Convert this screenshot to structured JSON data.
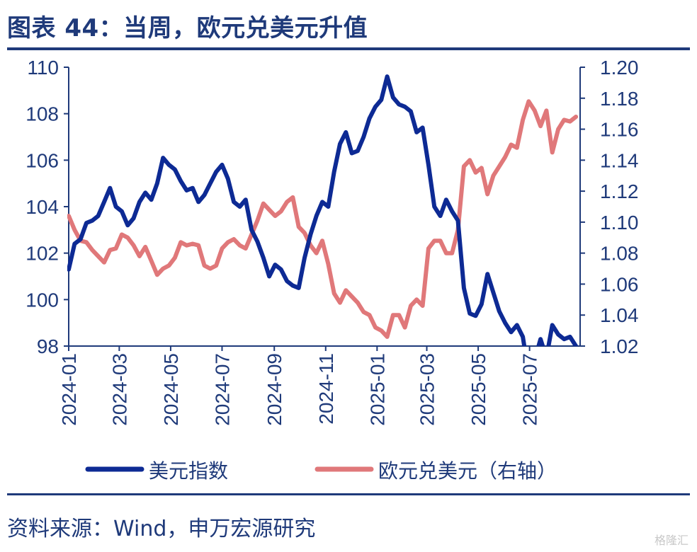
{
  "title": "图表 44：当周，欧元兑美元升值",
  "source": "资料来源：Wind，申万宏源研究",
  "watermark": "格隆汇",
  "colors": {
    "dxy": "#0d2a94",
    "eurusd": "#e0787a",
    "axis": "#1f3a7a"
  },
  "chart_data": {
    "type": "line",
    "x_ticks": [
      "2024-01",
      "2024-03",
      "2024-05",
      "2024-07",
      "2024-09",
      "2024-11",
      "2025-01",
      "2025-03",
      "2025-05",
      "2025-07"
    ],
    "x_range": [
      "2024-01",
      "2025-08"
    ],
    "y_left": {
      "label": "美元指数",
      "ylim": [
        98,
        110
      ],
      "ticks": [
        98,
        100,
        102,
        104,
        106,
        108,
        110
      ]
    },
    "y_right": {
      "label": "欧元兑美元（右轴）",
      "ylim": [
        1.02,
        1.2
      ],
      "ticks": [
        "1.02",
        "1.04",
        "1.06",
        "1.08",
        "1.10",
        "1.12",
        "1.14",
        "1.16",
        "1.18",
        "1.20"
      ]
    },
    "series": [
      {
        "name": "美元指数",
        "axis": "left",
        "points": [
          [
            "2024-01-01",
            101.3
          ],
          [
            "2024-01-08",
            102.4
          ],
          [
            "2024-01-15",
            102.6
          ],
          [
            "2024-01-22",
            103.3
          ],
          [
            "2024-01-29",
            103.4
          ],
          [
            "2024-02-05",
            103.6
          ],
          [
            "2024-02-12",
            104.2
          ],
          [
            "2024-02-19",
            104.8
          ],
          [
            "2024-02-26",
            104.0
          ],
          [
            "2024-03-04",
            103.8
          ],
          [
            "2024-03-11",
            103.2
          ],
          [
            "2024-03-18",
            103.5
          ],
          [
            "2024-03-25",
            104.2
          ],
          [
            "2024-04-01",
            104.6
          ],
          [
            "2024-04-08",
            104.3
          ],
          [
            "2024-04-15",
            105.0
          ],
          [
            "2024-04-22",
            106.1
          ],
          [
            "2024-04-29",
            105.8
          ],
          [
            "2024-05-06",
            105.6
          ],
          [
            "2024-05-13",
            105.1
          ],
          [
            "2024-05-20",
            104.7
          ],
          [
            "2024-05-27",
            104.8
          ],
          [
            "2024-06-03",
            104.2
          ],
          [
            "2024-06-10",
            104.5
          ],
          [
            "2024-06-17",
            105.0
          ],
          [
            "2024-06-24",
            105.5
          ],
          [
            "2024-07-01",
            105.8
          ],
          [
            "2024-07-08",
            105.2
          ],
          [
            "2024-07-15",
            104.2
          ],
          [
            "2024-07-22",
            104.0
          ],
          [
            "2024-07-29",
            104.3
          ],
          [
            "2024-08-05",
            103.0
          ],
          [
            "2024-08-12",
            102.5
          ],
          [
            "2024-08-19",
            101.8
          ],
          [
            "2024-08-26",
            101.0
          ],
          [
            "2024-09-02",
            101.5
          ],
          [
            "2024-09-09",
            101.3
          ],
          [
            "2024-09-16",
            100.8
          ],
          [
            "2024-09-23",
            100.6
          ],
          [
            "2024-09-30",
            100.5
          ],
          [
            "2024-10-07",
            101.8
          ],
          [
            "2024-10-14",
            102.8
          ],
          [
            "2024-10-21",
            103.6
          ],
          [
            "2024-10-28",
            104.2
          ],
          [
            "2024-11-04",
            104.0
          ],
          [
            "2024-11-11",
            105.5
          ],
          [
            "2024-11-18",
            106.7
          ],
          [
            "2024-11-25",
            107.2
          ],
          [
            "2024-12-02",
            106.3
          ],
          [
            "2024-12-09",
            106.4
          ],
          [
            "2024-12-16",
            107.0
          ],
          [
            "2024-12-23",
            107.8
          ],
          [
            "2024-12-30",
            108.3
          ],
          [
            "2025-01-06",
            108.6
          ],
          [
            "2025-01-13",
            109.6
          ],
          [
            "2025-01-20",
            108.7
          ],
          [
            "2025-01-27",
            108.4
          ],
          [
            "2025-02-03",
            108.3
          ],
          [
            "2025-02-10",
            108.1
          ],
          [
            "2025-02-17",
            107.2
          ],
          [
            "2025-02-24",
            107.4
          ],
          [
            "2025-03-03",
            105.8
          ],
          [
            "2025-03-10",
            104.0
          ],
          [
            "2025-03-17",
            103.6
          ],
          [
            "2025-03-24",
            104.3
          ],
          [
            "2025-03-31",
            103.8
          ],
          [
            "2025-04-07",
            103.4
          ],
          [
            "2025-04-14",
            100.5
          ],
          [
            "2025-04-21",
            99.4
          ],
          [
            "2025-04-28",
            99.3
          ],
          [
            "2025-05-05",
            99.8
          ],
          [
            "2025-05-12",
            101.1
          ],
          [
            "2025-05-19",
            100.3
          ],
          [
            "2025-05-26",
            99.5
          ],
          [
            "2025-06-02",
            99.0
          ],
          [
            "2025-06-09",
            98.6
          ],
          [
            "2025-06-16",
            98.9
          ],
          [
            "2025-06-23",
            98.4
          ],
          [
            "2025-06-30",
            96.8
          ],
          [
            "2025-07-07",
            97.4
          ],
          [
            "2025-07-14",
            98.3
          ],
          [
            "2025-07-21",
            97.5
          ],
          [
            "2025-07-28",
            98.9
          ],
          [
            "2025-08-04",
            98.5
          ],
          [
            "2025-08-11",
            98.3
          ],
          [
            "2025-08-18",
            98.4
          ],
          [
            "2025-08-25",
            98.0
          ]
        ]
      },
      {
        "name": "欧元兑美元（右轴）",
        "axis": "right",
        "points": [
          [
            "2024-01-01",
            1.104
          ],
          [
            "2024-01-08",
            1.095
          ],
          [
            "2024-01-15",
            1.088
          ],
          [
            "2024-01-22",
            1.087
          ],
          [
            "2024-01-29",
            1.082
          ],
          [
            "2024-02-05",
            1.078
          ],
          [
            "2024-02-12",
            1.074
          ],
          [
            "2024-02-19",
            1.082
          ],
          [
            "2024-02-26",
            1.083
          ],
          [
            "2024-03-04",
            1.092
          ],
          [
            "2024-03-11",
            1.09
          ],
          [
            "2024-03-18",
            1.085
          ],
          [
            "2024-03-25",
            1.078
          ],
          [
            "2024-04-01",
            1.084
          ],
          [
            "2024-04-08",
            1.075
          ],
          [
            "2024-04-15",
            1.066
          ],
          [
            "2024-04-22",
            1.07
          ],
          [
            "2024-04-29",
            1.072
          ],
          [
            "2024-05-06",
            1.077
          ],
          [
            "2024-05-13",
            1.087
          ],
          [
            "2024-05-20",
            1.085
          ],
          [
            "2024-05-27",
            1.086
          ],
          [
            "2024-06-03",
            1.085
          ],
          [
            "2024-06-10",
            1.072
          ],
          [
            "2024-06-17",
            1.07
          ],
          [
            "2024-06-24",
            1.072
          ],
          [
            "2024-07-01",
            1.083
          ],
          [
            "2024-07-08",
            1.087
          ],
          [
            "2024-07-15",
            1.089
          ],
          [
            "2024-07-22",
            1.085
          ],
          [
            "2024-07-29",
            1.083
          ],
          [
            "2024-08-05",
            1.092
          ],
          [
            "2024-08-12",
            1.101
          ],
          [
            "2024-08-19",
            1.112
          ],
          [
            "2024-08-26",
            1.108
          ],
          [
            "2024-09-02",
            1.104
          ],
          [
            "2024-09-09",
            1.107
          ],
          [
            "2024-09-16",
            1.113
          ],
          [
            "2024-09-23",
            1.116
          ],
          [
            "2024-09-30",
            1.097
          ],
          [
            "2024-10-07",
            1.093
          ],
          [
            "2024-10-14",
            1.085
          ],
          [
            "2024-10-21",
            1.08
          ],
          [
            "2024-10-28",
            1.088
          ],
          [
            "2024-11-04",
            1.073
          ],
          [
            "2024-11-11",
            1.054
          ],
          [
            "2024-11-18",
            1.048
          ],
          [
            "2024-11-25",
            1.056
          ],
          [
            "2024-12-02",
            1.052
          ],
          [
            "2024-12-09",
            1.048
          ],
          [
            "2024-12-16",
            1.042
          ],
          [
            "2024-12-23",
            1.04
          ],
          [
            "2024-12-30",
            1.032
          ],
          [
            "2025-01-06",
            1.03
          ],
          [
            "2025-01-13",
            1.026
          ],
          [
            "2025-01-20",
            1.04
          ],
          [
            "2025-01-27",
            1.04
          ],
          [
            "2025-02-03",
            1.032
          ],
          [
            "2025-02-10",
            1.046
          ],
          [
            "2025-02-17",
            1.05
          ],
          [
            "2025-02-24",
            1.046
          ],
          [
            "2025-03-03",
            1.083
          ],
          [
            "2025-03-10",
            1.088
          ],
          [
            "2025-03-17",
            1.088
          ],
          [
            "2025-03-24",
            1.08
          ],
          [
            "2025-03-31",
            1.08
          ],
          [
            "2025-04-07",
            1.095
          ],
          [
            "2025-04-14",
            1.136
          ],
          [
            "2025-04-21",
            1.14
          ],
          [
            "2025-04-28",
            1.132
          ],
          [
            "2025-05-05",
            1.135
          ],
          [
            "2025-05-12",
            1.118
          ],
          [
            "2025-05-19",
            1.13
          ],
          [
            "2025-05-26",
            1.136
          ],
          [
            "2025-06-02",
            1.142
          ],
          [
            "2025-06-09",
            1.15
          ],
          [
            "2025-06-16",
            1.148
          ],
          [
            "2025-06-23",
            1.166
          ],
          [
            "2025-06-30",
            1.178
          ],
          [
            "2025-07-07",
            1.172
          ],
          [
            "2025-07-14",
            1.162
          ],
          [
            "2025-07-21",
            1.172
          ],
          [
            "2025-07-28",
            1.145
          ],
          [
            "2025-08-04",
            1.16
          ],
          [
            "2025-08-11",
            1.166
          ],
          [
            "2025-08-18",
            1.165
          ],
          [
            "2025-08-25",
            1.168
          ]
        ]
      }
    ],
    "legend": [
      "美元指数",
      "欧元兑美元（右轴）"
    ]
  }
}
